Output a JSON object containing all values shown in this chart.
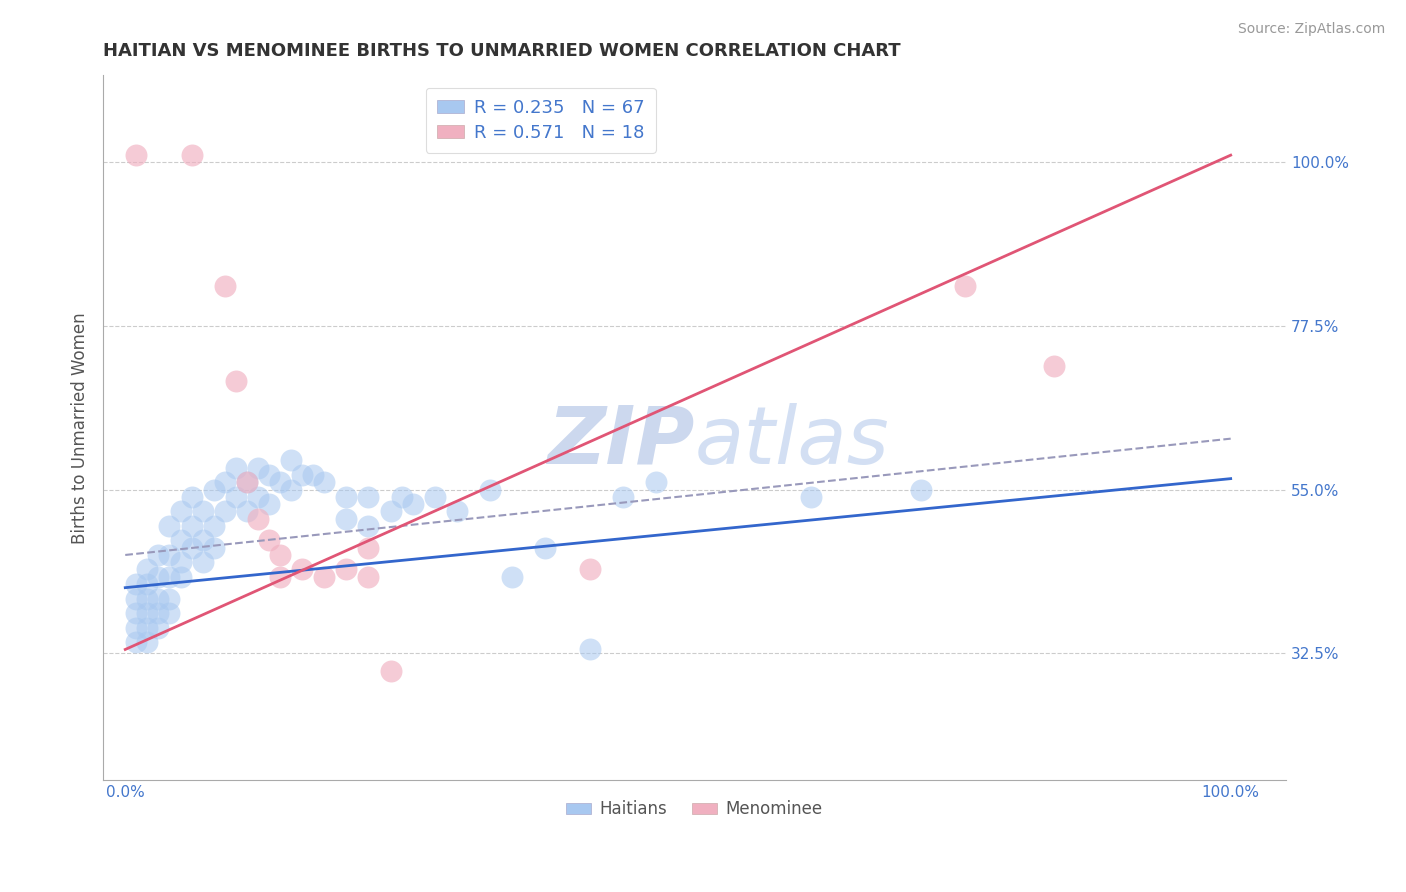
{
  "title": "HAITIAN VS MENOMINEE BIRTHS TO UNMARRIED WOMEN CORRELATION CHART",
  "source": "Source: ZipAtlas.com",
  "ylabel": "Births to Unmarried Women",
  "xticklabels": [
    "0.0%",
    "",
    "",
    "",
    "100.0%"
  ],
  "xticks": [
    0.0,
    0.25,
    0.5,
    0.75,
    1.0
  ],
  "yticklabels": [
    "32.5%",
    "55.0%",
    "77.5%",
    "100.0%"
  ],
  "yticks": [
    0.325,
    0.55,
    0.775,
    1.0
  ],
  "ylim": [
    0.15,
    1.12
  ],
  "xlim": [
    -0.02,
    1.05
  ],
  "blue_color": "#a8c8f0",
  "pink_color": "#f0b0c0",
  "blue_line_color": "#3366cc",
  "blue_dash_color": "#9999bb",
  "pink_line_color": "#e05575",
  "title_color": "#333333",
  "axis_label_color": "#555555",
  "tick_label_color": "#4477cc",
  "grid_color": "#cccccc",
  "source_color": "#999999",
  "watermark_color": "#ccd8ee",
  "blue_dots": [
    [
      0.01,
      0.42
    ],
    [
      0.01,
      0.4
    ],
    [
      0.01,
      0.38
    ],
    [
      0.01,
      0.36
    ],
    [
      0.01,
      0.34
    ],
    [
      0.02,
      0.44
    ],
    [
      0.02,
      0.42
    ],
    [
      0.02,
      0.4
    ],
    [
      0.02,
      0.38
    ],
    [
      0.02,
      0.36
    ],
    [
      0.02,
      0.34
    ],
    [
      0.03,
      0.46
    ],
    [
      0.03,
      0.43
    ],
    [
      0.03,
      0.4
    ],
    [
      0.03,
      0.38
    ],
    [
      0.03,
      0.36
    ],
    [
      0.04,
      0.5
    ],
    [
      0.04,
      0.46
    ],
    [
      0.04,
      0.43
    ],
    [
      0.04,
      0.4
    ],
    [
      0.04,
      0.38
    ],
    [
      0.05,
      0.52
    ],
    [
      0.05,
      0.48
    ],
    [
      0.05,
      0.45
    ],
    [
      0.05,
      0.43
    ],
    [
      0.06,
      0.54
    ],
    [
      0.06,
      0.5
    ],
    [
      0.06,
      0.47
    ],
    [
      0.07,
      0.52
    ],
    [
      0.07,
      0.48
    ],
    [
      0.07,
      0.45
    ],
    [
      0.08,
      0.55
    ],
    [
      0.08,
      0.5
    ],
    [
      0.08,
      0.47
    ],
    [
      0.09,
      0.56
    ],
    [
      0.09,
      0.52
    ],
    [
      0.1,
      0.58
    ],
    [
      0.1,
      0.54
    ],
    [
      0.11,
      0.56
    ],
    [
      0.11,
      0.52
    ],
    [
      0.12,
      0.58
    ],
    [
      0.12,
      0.54
    ],
    [
      0.13,
      0.57
    ],
    [
      0.13,
      0.53
    ],
    [
      0.14,
      0.56
    ],
    [
      0.15,
      0.59
    ],
    [
      0.15,
      0.55
    ],
    [
      0.16,
      0.57
    ],
    [
      0.17,
      0.57
    ],
    [
      0.18,
      0.56
    ],
    [
      0.2,
      0.54
    ],
    [
      0.2,
      0.51
    ],
    [
      0.22,
      0.54
    ],
    [
      0.22,
      0.5
    ],
    [
      0.24,
      0.52
    ],
    [
      0.25,
      0.54
    ],
    [
      0.26,
      0.53
    ],
    [
      0.28,
      0.54
    ],
    [
      0.3,
      0.52
    ],
    [
      0.33,
      0.55
    ],
    [
      0.35,
      0.43
    ],
    [
      0.38,
      0.47
    ],
    [
      0.42,
      0.33
    ],
    [
      0.45,
      0.54
    ],
    [
      0.48,
      0.56
    ],
    [
      0.62,
      0.54
    ],
    [
      0.72,
      0.55
    ]
  ],
  "pink_dots": [
    [
      0.01,
      1.01
    ],
    [
      0.06,
      1.01
    ],
    [
      0.09,
      0.83
    ],
    [
      0.1,
      0.7
    ],
    [
      0.11,
      0.56
    ],
    [
      0.12,
      0.51
    ],
    [
      0.13,
      0.48
    ],
    [
      0.14,
      0.46
    ],
    [
      0.14,
      0.43
    ],
    [
      0.16,
      0.44
    ],
    [
      0.18,
      0.43
    ],
    [
      0.2,
      0.44
    ],
    [
      0.22,
      0.47
    ],
    [
      0.22,
      0.43
    ],
    [
      0.24,
      0.3
    ],
    [
      0.76,
      0.83
    ],
    [
      0.84,
      0.72
    ],
    [
      0.42,
      0.44
    ]
  ],
  "blue_line": [
    [
      0.0,
      0.415
    ],
    [
      1.0,
      0.565
    ]
  ],
  "blue_dashed_line": [
    [
      0.0,
      0.46
    ],
    [
      1.0,
      0.62
    ]
  ],
  "pink_line": [
    [
      0.0,
      0.33
    ],
    [
      1.0,
      1.01
    ]
  ]
}
